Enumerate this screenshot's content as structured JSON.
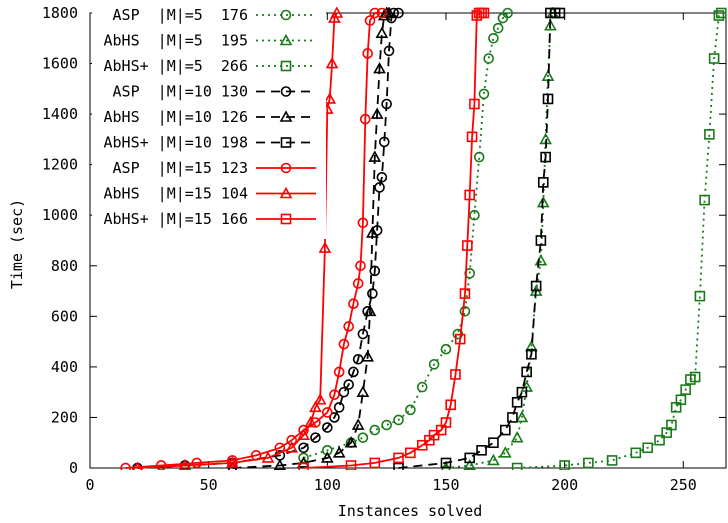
{
  "chart_data": {
    "type": "line",
    "title": "",
    "xlabel": "Instances solved",
    "ylabel": "Time (sec)",
    "xlim": [
      0,
      268
    ],
    "ylim": [
      0,
      1800
    ],
    "xticks": [
      0,
      50,
      100,
      150,
      200,
      250
    ],
    "yticks": [
      0,
      200,
      400,
      600,
      800,
      1000,
      1200,
      1400,
      1600,
      1800
    ],
    "grid": false,
    "legend_position": "top-left",
    "series": [
      {
        "name": "ASP  |M|=5  176",
        "color": "#1a7a1a",
        "marker": "circle",
        "dash": "dotted",
        "x": [
          90,
          100,
          110,
          115,
          120,
          125,
          130,
          135,
          140,
          145,
          150,
          155,
          158,
          160,
          162,
          164,
          166,
          168,
          170,
          172,
          174,
          176
        ],
        "y": [
          40,
          70,
          100,
          120,
          150,
          170,
          190,
          230,
          320,
          410,
          470,
          530,
          620,
          770,
          1000,
          1230,
          1480,
          1620,
          1700,
          1740,
          1780,
          1800
        ]
      },
      {
        "name": "AbHS  |M|=5  195",
        "color": "#1a7a1a",
        "marker": "triangle",
        "dash": "dotted",
        "x": [
          150,
          160,
          170,
          175,
          180,
          182,
          184,
          186,
          188,
          190,
          191,
          192,
          193,
          194,
          195
        ],
        "y": [
          0,
          10,
          30,
          60,
          120,
          200,
          320,
          480,
          700,
          820,
          1050,
          1300,
          1550,
          1750,
          1800
        ]
      },
      {
        "name": "AbHS+ |M|=5  266",
        "color": "#1a7a1a",
        "marker": "square",
        "dash": "dotted",
        "x": [
          180,
          200,
          210,
          220,
          230,
          235,
          240,
          243,
          245,
          247,
          249,
          251,
          253,
          255,
          257,
          259,
          261,
          263,
          265,
          266
        ],
        "y": [
          0,
          10,
          20,
          30,
          60,
          80,
          110,
          140,
          170,
          240,
          270,
          310,
          350,
          360,
          680,
          1060,
          1320,
          1620,
          1790,
          1800
        ]
      },
      {
        "name": "ASP  |M|=10 130",
        "color": "#000000",
        "marker": "circle",
        "dash": "dashed",
        "x": [
          20,
          40,
          60,
          80,
          90,
          95,
          100,
          103,
          105,
          107,
          109,
          111,
          113,
          115,
          117,
          119,
          120,
          121,
          122,
          123,
          124,
          125,
          126,
          127,
          128,
          130
        ],
        "y": [
          0,
          10,
          20,
          50,
          80,
          120,
          160,
          200,
          240,
          300,
          330,
          380,
          430,
          530,
          620,
          690,
          780,
          940,
          1110,
          1150,
          1290,
          1440,
          1650,
          1780,
          1800,
          1800
        ]
      },
      {
        "name": "AbHS  |M|=10 126",
        "color": "#000000",
        "marker": "triangle",
        "dash": "dashed",
        "x": [
          60,
          80,
          90,
          100,
          105,
          110,
          113,
          115,
          117,
          118,
          119,
          120,
          121,
          122,
          123,
          124,
          125,
          126
        ],
        "y": [
          0,
          10,
          20,
          40,
          60,
          100,
          170,
          300,
          440,
          620,
          930,
          1230,
          1400,
          1580,
          1720,
          1790,
          1800,
          1800
        ]
      },
      {
        "name": "AbHS+ |M|=10 198",
        "color": "#000000",
        "marker": "square",
        "dash": "dashed",
        "x": [
          130,
          150,
          160,
          165,
          170,
          175,
          178,
          180,
          182,
          184,
          186,
          188,
          190,
          191,
          192,
          193,
          194,
          196,
          198
        ],
        "y": [
          0,
          20,
          40,
          70,
          100,
          150,
          200,
          260,
          300,
          380,
          450,
          720,
          900,
          1130,
          1230,
          1460,
          1800,
          1800,
          1800
        ]
      },
      {
        "name": "ASP  |M|=15 123",
        "color": "#ff0000",
        "marker": "circle",
        "dash": "solid",
        "x": [
          15,
          30,
          45,
          60,
          70,
          80,
          85,
          90,
          95,
          100,
          103,
          105,
          107,
          109,
          111,
          113,
          114,
          115,
          116,
          117,
          118,
          120,
          123
        ],
        "y": [
          0,
          10,
          20,
          30,
          50,
          80,
          110,
          150,
          180,
          220,
          290,
          380,
          490,
          560,
          650,
          730,
          800,
          970,
          1380,
          1640,
          1770,
          1800,
          1800
        ]
      },
      {
        "name": "AbHS  |M|=15 104",
        "color": "#ff0000",
        "marker": "triangle",
        "dash": "solid",
        "x": [
          20,
          40,
          60,
          75,
          85,
          90,
          93,
          95,
          97,
          99,
          100,
          101,
          102,
          103,
          104
        ],
        "y": [
          0,
          10,
          20,
          40,
          80,
          130,
          180,
          240,
          270,
          870,
          1420,
          1460,
          1600,
          1780,
          1800
        ]
      },
      {
        "name": "AbHS+ |M|=15 166",
        "color": "#ff0000",
        "marker": "square",
        "dash": "solid",
        "x": [
          90,
          110,
          120,
          130,
          135,
          140,
          143,
          145,
          148,
          150,
          152,
          154,
          156,
          158,
          159,
          160,
          161,
          162,
          163,
          164,
          165,
          166
        ],
        "y": [
          0,
          10,
          20,
          40,
          60,
          90,
          110,
          130,
          150,
          180,
          250,
          370,
          510,
          690,
          880,
          1080,
          1310,
          1440,
          1790,
          1800,
          1800,
          1800
        ]
      }
    ]
  }
}
